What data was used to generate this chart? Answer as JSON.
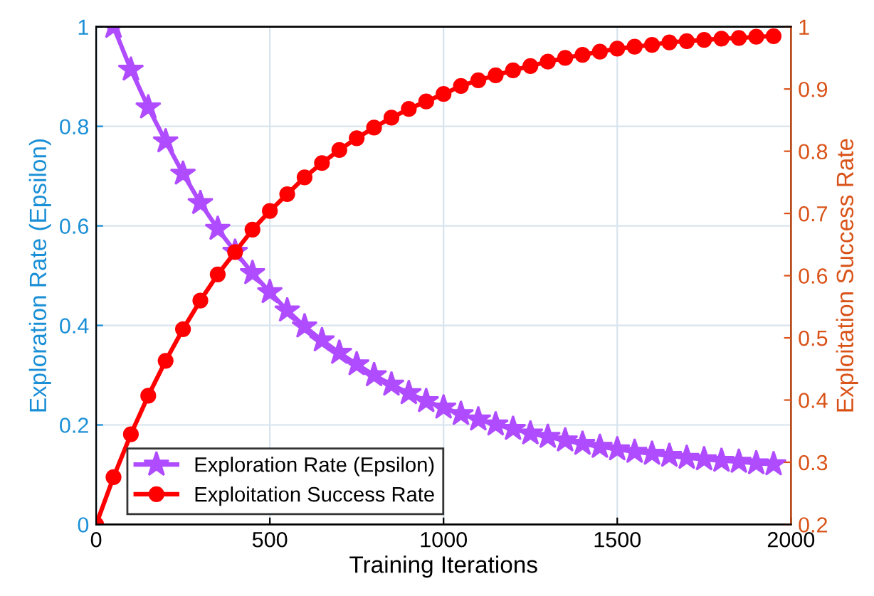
{
  "chart_data": {
    "type": "line",
    "xlabel": "Training Iterations",
    "ylabel": "Exploration Rate (Epsilon)",
    "y2label": "Exploitation Success Rate",
    "xlim": [
      0,
      2000
    ],
    "xticks": [
      0,
      500,
      1000,
      1500,
      2000
    ],
    "ylim": [
      0,
      1
    ],
    "yticks": [
      0,
      0.2,
      0.4,
      0.6,
      0.8,
      1
    ],
    "y2lim": [
      0.2,
      1
    ],
    "y2ticks": [
      0.2,
      0.3,
      0.4,
      0.5,
      0.6,
      0.7,
      0.8,
      0.9,
      1
    ],
    "grid": true,
    "legend": "bottom left",
    "line_style": "solid",
    "series": [
      {
        "name": "Exploration Rate (Epsilon)",
        "color": "#b04cff",
        "marker": "star",
        "axis": "y",
        "x": [
          50,
          100,
          150,
          200,
          250,
          300,
          350,
          400,
          450,
          500,
          550,
          600,
          650,
          700,
          750,
          800,
          850,
          900,
          950,
          1000,
          1050,
          1100,
          1150,
          1200,
          1250,
          1300,
          1350,
          1400,
          1450,
          1500,
          1550,
          1600,
          1650,
          1700,
          1750,
          1800,
          1850,
          1900,
          1950
        ],
        "values": [
          1.0,
          0.914,
          0.838,
          0.77,
          0.705,
          0.646,
          0.594,
          0.548,
          0.505,
          0.467,
          0.43,
          0.398,
          0.37,
          0.345,
          0.322,
          0.3,
          0.281,
          0.264,
          0.248,
          0.235,
          0.222,
          0.211,
          0.201,
          0.192,
          0.183,
          0.176,
          0.169,
          0.162,
          0.156,
          0.151,
          0.146,
          0.142,
          0.138,
          0.134,
          0.131,
          0.128,
          0.126,
          0.123,
          0.121
        ]
      },
      {
        "name": "Exploitation Success Rate",
        "color": "#ff0000",
        "marker": "circle",
        "axis": "y2",
        "x": [
          0,
          50,
          100,
          150,
          200,
          250,
          300,
          350,
          400,
          450,
          500,
          550,
          600,
          650,
          700,
          750,
          800,
          850,
          900,
          950,
          1000,
          1050,
          1100,
          1150,
          1200,
          1250,
          1300,
          1350,
          1400,
          1450,
          1500,
          1550,
          1600,
          1650,
          1700,
          1750,
          1800,
          1850,
          1900,
          1950
        ],
        "values": [
          0.2,
          0.276,
          0.345,
          0.407,
          0.463,
          0.514,
          0.56,
          0.602,
          0.638,
          0.674,
          0.704,
          0.731,
          0.758,
          0.781,
          0.802,
          0.821,
          0.838,
          0.854,
          0.868,
          0.88,
          0.892,
          0.905,
          0.914,
          0.922,
          0.93,
          0.937,
          0.944,
          0.95,
          0.955,
          0.96,
          0.965,
          0.968,
          0.971,
          0.975,
          0.977,
          0.979,
          0.981,
          0.982,
          0.984,
          0.985
        ]
      }
    ]
  }
}
